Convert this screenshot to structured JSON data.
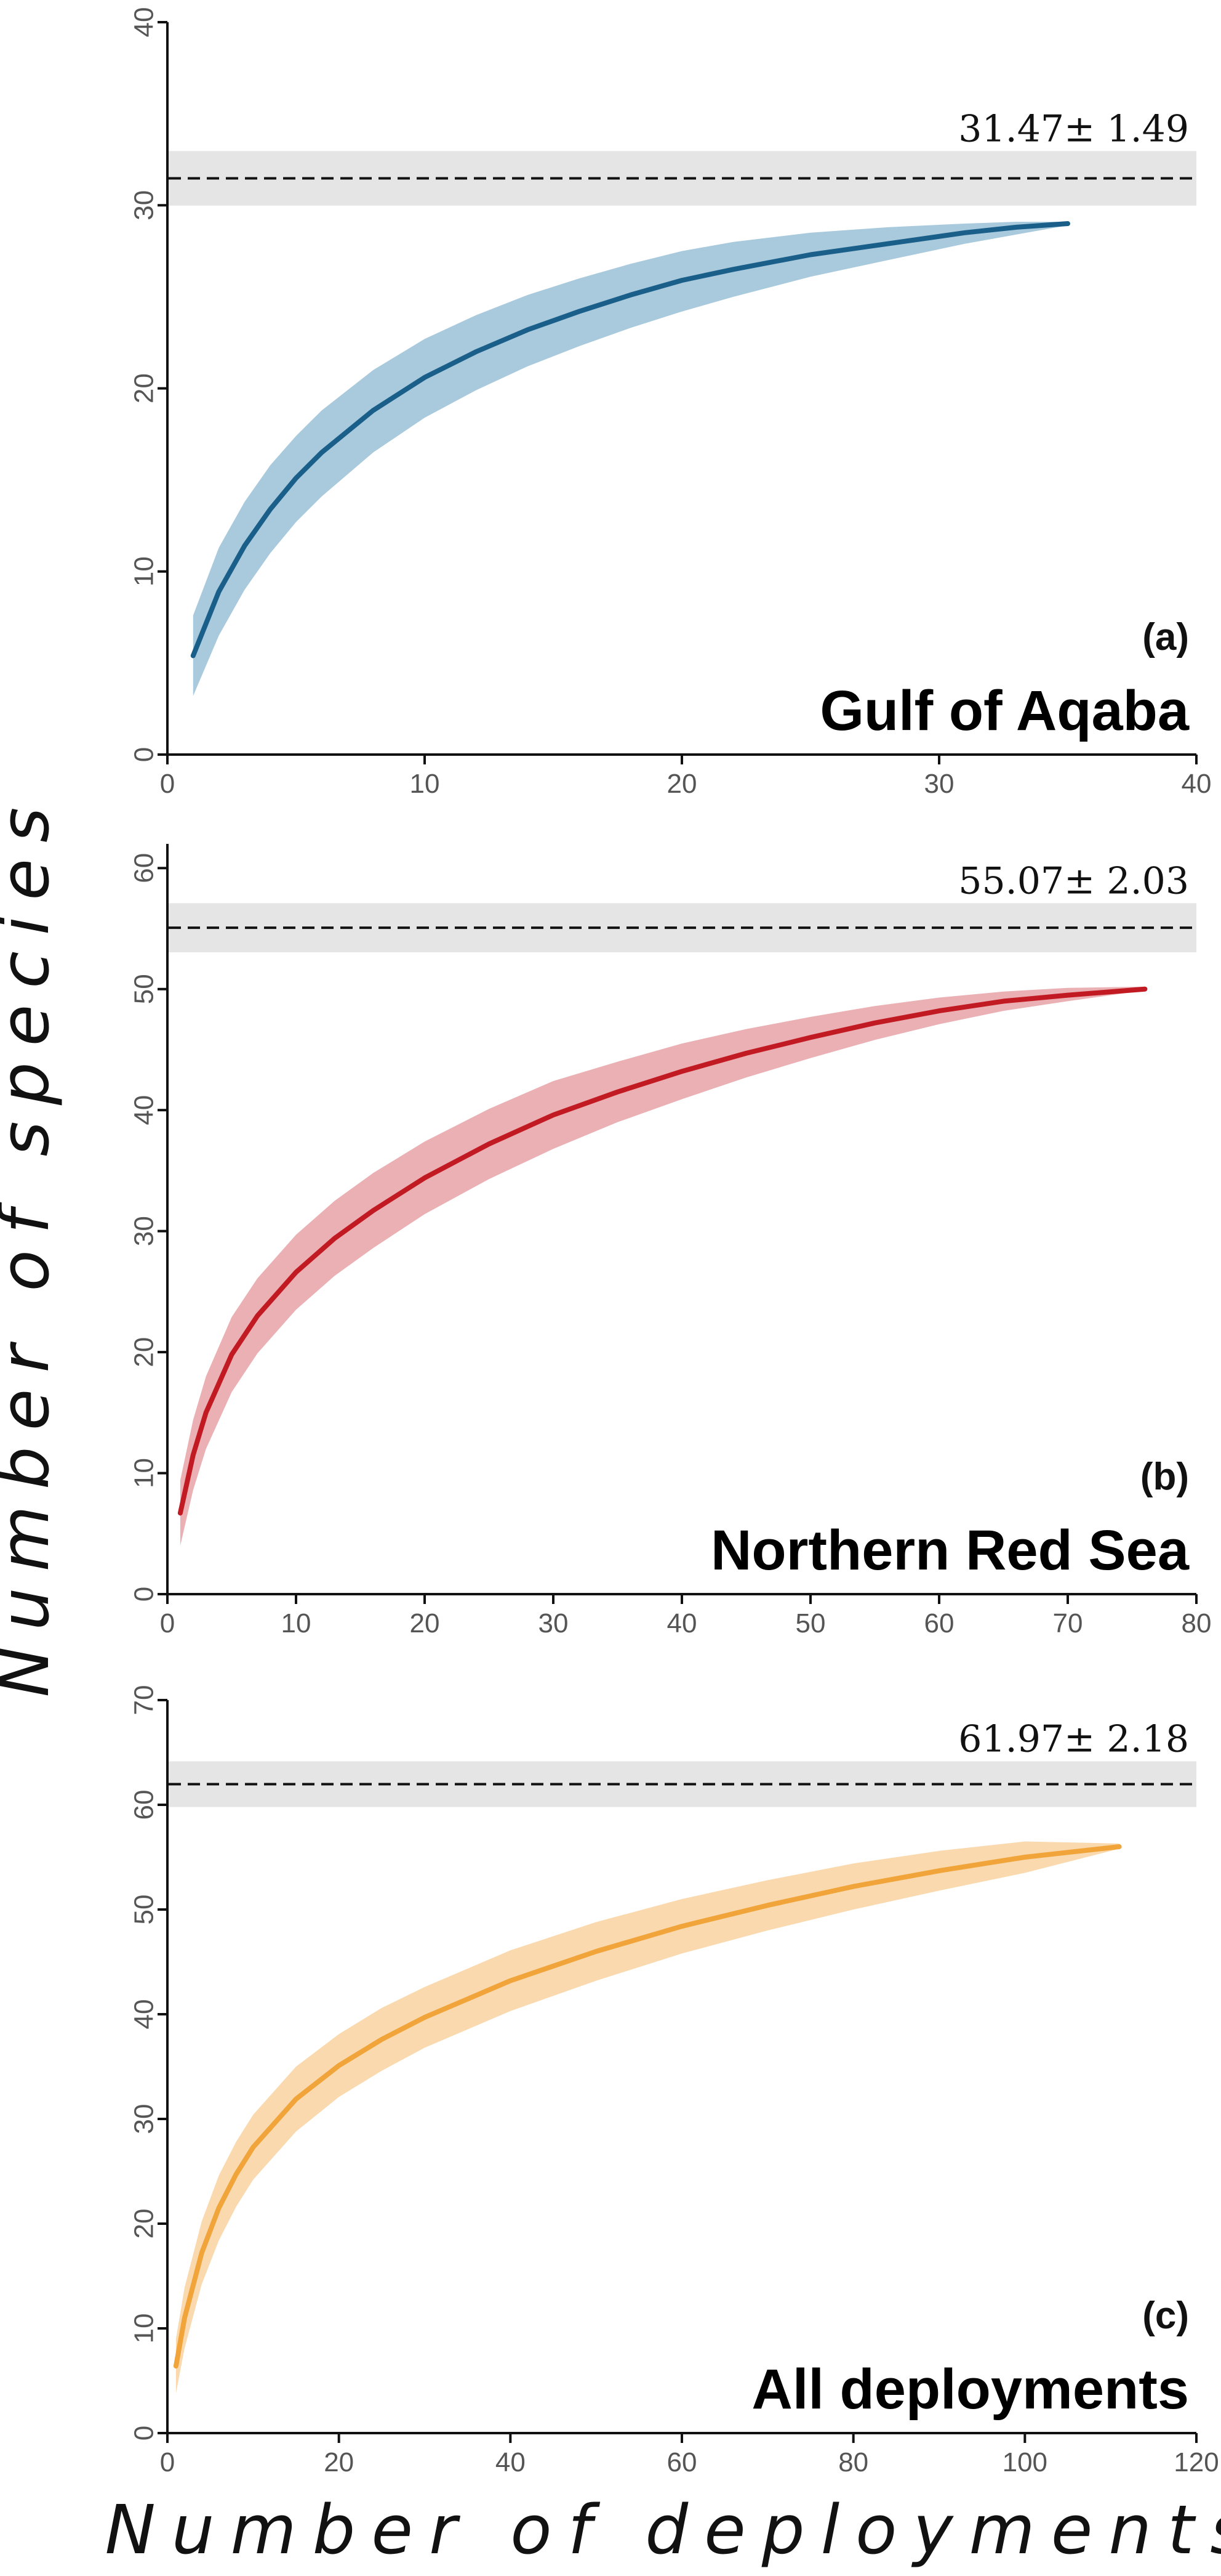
{
  "ylabel": "Number of species",
  "xlabel": "Number of deployments",
  "chart_data": [
    {
      "type": "line",
      "panel_tag": "(a)",
      "title": "Gulf of Aqaba",
      "estimate_label": "31.47± 1.49",
      "estimate": {
        "mean": 31.47,
        "sd": 1.49
      },
      "color": "#1a5e8a",
      "band_color": "#a8cadc",
      "xlim": [
        0,
        40
      ],
      "ylim": [
        0,
        40
      ],
      "xticks": [
        0,
        10,
        20,
        30,
        40
      ],
      "yticks": [
        0,
        10,
        20,
        30,
        40
      ],
      "series": [
        {
          "x": [
            1,
            2,
            3,
            4,
            5,
            6,
            8,
            10,
            12,
            14,
            16,
            18,
            20,
            22,
            25,
            28,
            31,
            33,
            35
          ],
          "y": [
            5.4,
            8.9,
            11.4,
            13.4,
            15.1,
            16.5,
            18.8,
            20.6,
            22.0,
            23.2,
            24.2,
            25.1,
            25.9,
            26.5,
            27.3,
            27.9,
            28.5,
            28.8,
            29.0
          ],
          "lower": [
            3.2,
            6.5,
            9.0,
            11.0,
            12.7,
            14.1,
            16.5,
            18.4,
            19.9,
            21.2,
            22.3,
            23.3,
            24.2,
            25.0,
            26.1,
            27.0,
            27.9,
            28.4,
            28.9
          ],
          "upper": [
            7.6,
            11.3,
            13.8,
            15.8,
            17.4,
            18.8,
            21.0,
            22.7,
            24.0,
            25.1,
            26.0,
            26.8,
            27.5,
            28.0,
            28.5,
            28.8,
            29.0,
            29.1,
            29.1
          ]
        }
      ]
    },
    {
      "type": "line",
      "panel_tag": "(b)",
      "title": "Northern Red Sea",
      "estimate_label": "55.07± 2.03",
      "estimate": {
        "mean": 55.07,
        "sd": 2.03
      },
      "color": "#c21a22",
      "band_color": "#ebb0b4",
      "xlim": [
        0,
        80
      ],
      "ylim": [
        0,
        62
      ],
      "xticks": [
        0,
        10,
        20,
        30,
        40,
        50,
        60,
        70,
        80
      ],
      "yticks": [
        0,
        10,
        20,
        30,
        40,
        50,
        60
      ],
      "series": [
        {
          "x": [
            1,
            2,
            3,
            5,
            7,
            10,
            13,
            16,
            20,
            25,
            30,
            35,
            40,
            45,
            50,
            55,
            60,
            65,
            70,
            76
          ],
          "y": [
            6.7,
            11.5,
            15.0,
            19.8,
            23.0,
            26.6,
            29.4,
            31.7,
            34.4,
            37.2,
            39.6,
            41.5,
            43.2,
            44.7,
            46.0,
            47.2,
            48.2,
            49.0,
            49.5,
            50.0
          ],
          "lower": [
            4.0,
            8.6,
            12.0,
            16.7,
            19.9,
            23.5,
            26.3,
            28.6,
            31.4,
            34.3,
            36.8,
            39.0,
            40.9,
            42.7,
            44.3,
            45.8,
            47.1,
            48.2,
            49.0,
            49.9
          ],
          "upper": [
            9.4,
            14.4,
            18.0,
            22.9,
            26.1,
            29.7,
            32.5,
            34.8,
            37.4,
            40.1,
            42.4,
            44.0,
            45.5,
            46.7,
            47.7,
            48.6,
            49.3,
            49.8,
            50.1,
            50.2
          ]
        }
      ]
    },
    {
      "type": "line",
      "panel_tag": "(c)",
      "title": "All deployments",
      "estimate_label": "61.97± 2.18",
      "estimate": {
        "mean": 61.97,
        "sd": 2.18
      },
      "color": "#f0a43a",
      "band_color": "#f9d9ad",
      "xlim": [
        0,
        120
      ],
      "ylim": [
        0,
        70
      ],
      "xticks": [
        0,
        20,
        40,
        60,
        80,
        100,
        120
      ],
      "yticks": [
        0,
        10,
        20,
        30,
        40,
        50,
        60,
        70
      ],
      "series": [
        {
          "x": [
            1,
            2,
            4,
            6,
            8,
            10,
            15,
            20,
            25,
            30,
            40,
            50,
            60,
            70,
            80,
            90,
            100,
            111
          ],
          "y": [
            6.4,
            11.0,
            17.2,
            21.5,
            24.7,
            27.3,
            31.9,
            35.1,
            37.6,
            39.7,
            43.2,
            46.0,
            48.4,
            50.4,
            52.2,
            53.7,
            55.0,
            56.0
          ],
          "lower": [
            3.8,
            8.1,
            14.2,
            18.4,
            21.6,
            24.2,
            28.8,
            32.1,
            34.6,
            36.8,
            40.3,
            43.2,
            45.8,
            48.0,
            50.0,
            51.8,
            53.5,
            55.8
          ],
          "upper": [
            9.0,
            13.9,
            20.2,
            24.6,
            27.8,
            30.4,
            35.0,
            38.1,
            40.6,
            42.6,
            46.1,
            48.8,
            51.0,
            52.8,
            54.4,
            55.6,
            56.5,
            56.3
          ]
        }
      ]
    }
  ]
}
